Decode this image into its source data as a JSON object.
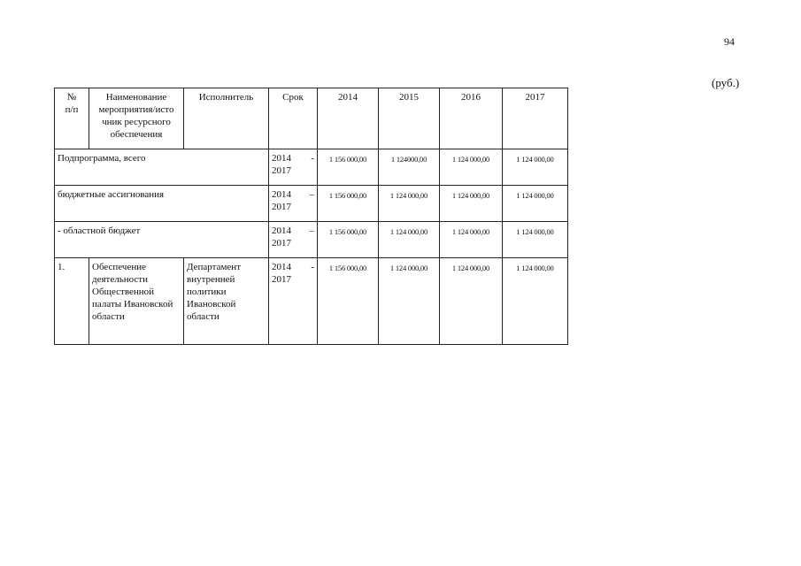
{
  "page_number": "94",
  "unit": "(руб.)",
  "table": {
    "headers": [
      "№ п/п",
      "Наименование мероприятия/источник ресурсного обеспечения",
      "Исполнитель",
      "Срок",
      "2014",
      "2015",
      "2016",
      "2017"
    ],
    "header_no": "№",
    "header_no2": "п/п",
    "header_name": "Наименование мероприятия/исто чник ресурсного обеспечения",
    "rows": [
      {
        "label": "Подпрограмма, всего",
        "term_start": "2014",
        "term_dash": "-",
        "term_end": "2017",
        "values": [
          "1 156 000,00",
          "1 124000,00",
          "1 124 000,00",
          "1 124 000,00"
        ]
      },
      {
        "label": "бюджетные ассигнования",
        "term_start": "2014",
        "term_dash": "–",
        "term_end": "2017",
        "values": [
          "1 156 000,00",
          "1 124 000,00",
          "1 124 000,00",
          "1 124 000,00"
        ]
      },
      {
        "label": "- областной бюджет",
        "term_start": "2014",
        "term_dash": "–",
        "term_end": "2017",
        "values": [
          "1 156 000,00",
          "1 124 000,00",
          "1 124 000,00",
          "1 124 000,00"
        ]
      }
    ],
    "item": {
      "no": "1.",
      "name": "Обеспечение деятельности Общественной палаты Ивановской области",
      "executor": "Департамент внутренней политики Ивановской области",
      "term_start": "2014",
      "term_dash": "-",
      "term_end": "2017",
      "values": [
        "1 156 000,00",
        "1 124 000,00",
        "1 124 000,00",
        "1 124 000,00"
      ]
    }
  }
}
